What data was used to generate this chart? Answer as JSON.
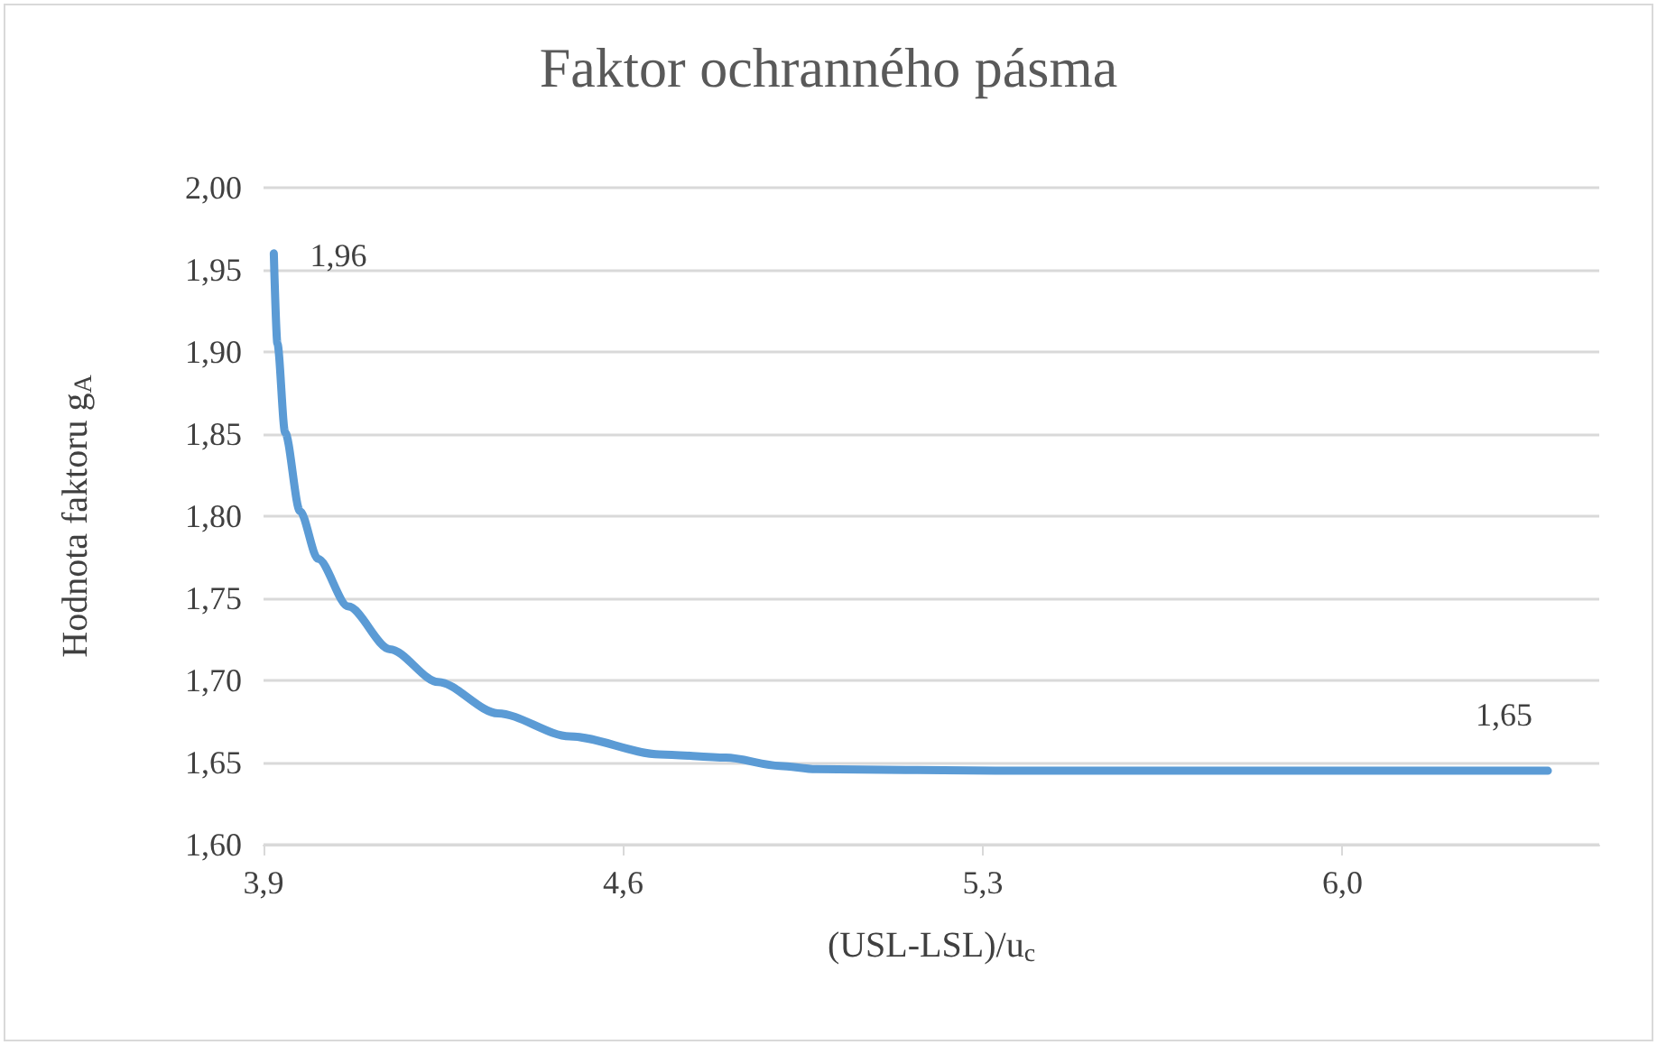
{
  "chart_data": {
    "type": "line",
    "title": "Faktor ochranného pásma",
    "xlabel": "(USL-LSL)/u$_{c}$",
    "ylabel": "Hodnota faktoru g$_{A}$",
    "series": [
      {
        "color": "#5b9bd5",
        "x": [
          3.92,
          3.927,
          3.942,
          3.971,
          4.006,
          4.065,
          4.146,
          4.24,
          4.356,
          4.496,
          4.671,
          4.8,
          4.905,
          4.975,
          5.325,
          5.8,
          6.4
        ],
        "values": [
          1.96,
          1.905,
          1.851,
          1.803,
          1.774,
          1.745,
          1.719,
          1.699,
          1.68,
          1.666,
          1.655,
          1.653,
          1.648,
          1.646,
          1.645,
          1.645,
          1.645
        ],
        "value_labels": [
          "1,96",
          null,
          null,
          null,
          null,
          null,
          null,
          null,
          null,
          null,
          null,
          null,
          null,
          null,
          null,
          null,
          "1,65"
        ]
      }
    ],
    "xlim": [
      3.9,
      6.5
    ],
    "xticks": [
      {
        "value": 3.9,
        "label": "3,9"
      },
      {
        "value": 4.6,
        "label": "4,6"
      },
      {
        "value": 5.3,
        "label": "5,3"
      },
      {
        "value": 6.0,
        "label": "6,0"
      }
    ],
    "ylim": [
      1.6,
      2.0
    ],
    "yticks": [
      {
        "value": 1.6,
        "label": "1,60"
      },
      {
        "value": 1.65,
        "label": "1,65"
      },
      {
        "value": 1.7,
        "label": "1,70"
      },
      {
        "value": 1.75,
        "label": "1,75"
      },
      {
        "value": 1.8,
        "label": "1,80"
      },
      {
        "value": 1.85,
        "label": "1,85"
      },
      {
        "value": 1.9,
        "label": "1,90"
      },
      {
        "value": 1.95,
        "label": "1,95"
      },
      {
        "value": 2.0,
        "label": "2,00"
      }
    ],
    "grid": "y",
    "marker": "none",
    "line_style": "solid"
  }
}
